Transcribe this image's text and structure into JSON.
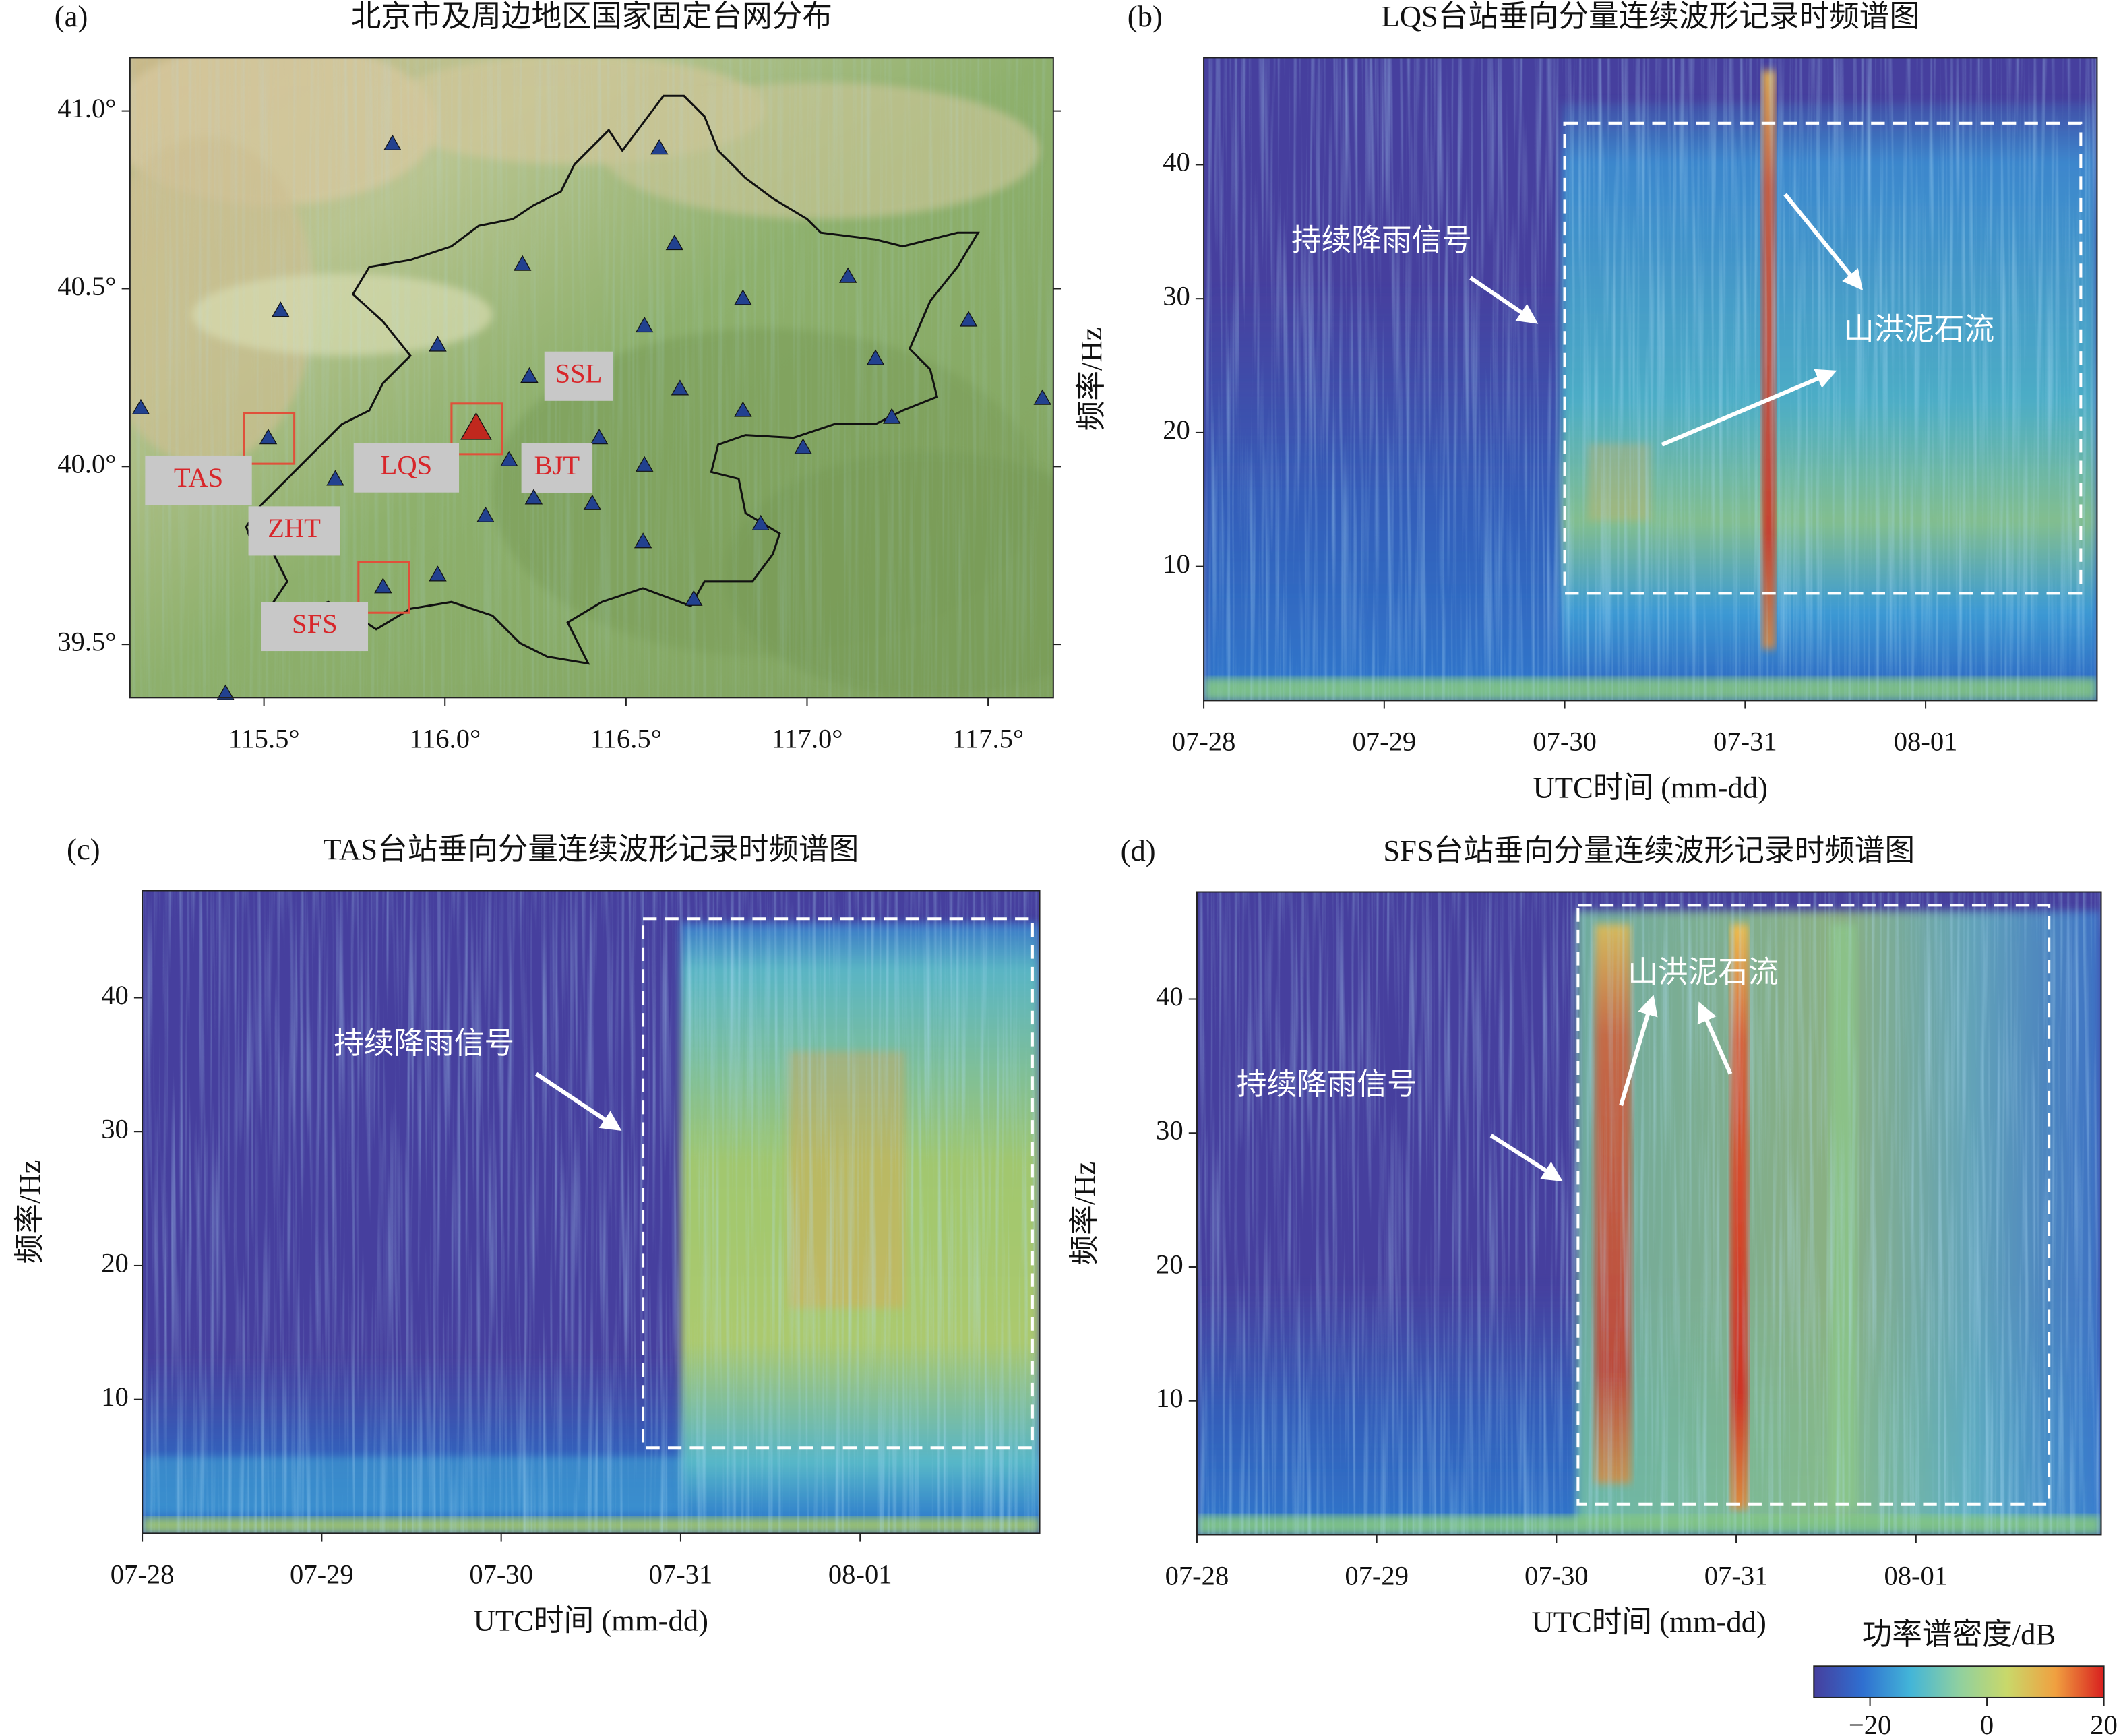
{
  "chart_data": [
    {
      "type": "map",
      "panel_label": "(a)",
      "title": "北京市及周边地区国家固定台网分布",
      "xlim": [
        115.13,
        117.68
      ],
      "ylim": [
        39.35,
        41.15
      ],
      "xticks": [
        {
          "value": 115.5,
          "label": "115.5°"
        },
        {
          "value": 116.0,
          "label": "116.0°"
        },
        {
          "value": 116.5,
          "label": "116.5°"
        },
        {
          "value": 117.0,
          "label": "117.0°"
        },
        {
          "value": 117.5,
          "label": "117.5°"
        }
      ],
      "yticks": [
        {
          "value": 39.5,
          "label": "39.5°"
        },
        {
          "value": 40.0,
          "label": "40.0°"
        },
        {
          "value": 40.5,
          "label": "40.5°"
        },
        {
          "value": 41.0,
          "label": "41.0°"
        }
      ],
      "station_color": "#22418f",
      "stations": [
        {
          "lon": 115.855,
          "lat": 40.908
        },
        {
          "lon": 116.592,
          "lat": 40.896
        },
        {
          "lon": 116.634,
          "lat": 40.627
        },
        {
          "lon": 116.214,
          "lat": 40.569
        },
        {
          "lon": 115.546,
          "lat": 40.439
        },
        {
          "lon": 116.823,
          "lat": 40.473
        },
        {
          "lon": 117.113,
          "lat": 40.535
        },
        {
          "lon": 115.98,
          "lat": 40.342
        },
        {
          "lon": 116.551,
          "lat": 40.396
        },
        {
          "lon": 117.446,
          "lat": 40.412
        },
        {
          "lon": 117.189,
          "lat": 40.304
        },
        {
          "lon": 116.233,
          "lat": 40.254,
          "name": "SSL"
        },
        {
          "lon": 116.649,
          "lat": 40.219
        },
        {
          "lon": 115.16,
          "lat": 40.165
        },
        {
          "lon": 116.823,
          "lat": 40.158
        },
        {
          "lon": 117.234,
          "lat": 40.139
        },
        {
          "lon": 117.65,
          "lat": 40.192
        },
        {
          "lon": 115.512,
          "lat": 40.081,
          "name": "TAS",
          "highlight": true
        },
        {
          "lon": 116.426,
          "lat": 40.081
        },
        {
          "lon": 116.177,
          "lat": 40.019,
          "name": "BJT"
        },
        {
          "lon": 116.989,
          "lat": 40.054
        },
        {
          "lon": 115.697,
          "lat": 39.965,
          "name": "ZHT"
        },
        {
          "lon": 116.551,
          "lat": 40.004
        },
        {
          "lon": 116.245,
          "lat": 39.912
        },
        {
          "lon": 116.407,
          "lat": 39.896
        },
        {
          "lon": 116.112,
          "lat": 39.862
        },
        {
          "lon": 116.872,
          "lat": 39.839
        },
        {
          "lon": 116.547,
          "lat": 39.789
        },
        {
          "lon": 115.829,
          "lat": 39.662,
          "name": "SFS",
          "highlight": true
        },
        {
          "lon": 115.98,
          "lat": 39.696
        },
        {
          "lon": 116.687,
          "lat": 39.627
        },
        {
          "lon": 115.394,
          "lat": 39.362
        },
        {
          "lon": 116.086,
          "lat": 40.108,
          "name": "LQS",
          "highlight": true,
          "color": "#c0281e"
        }
      ]
    },
    {
      "type": "spectrogram",
      "panel_label": "(b)",
      "title": "LQS台站垂向分量连续波形记录时频谱图",
      "xlabel": "UTC时间 (mm-dd)",
      "ylabel": "频率/Hz",
      "xlim": [
        0,
        4.95
      ],
      "ylim": [
        0,
        48
      ],
      "xticks": [
        {
          "value": 0,
          "label": "07-28"
        },
        {
          "value": 1,
          "label": "07-29"
        },
        {
          "value": 2,
          "label": "07-30"
        },
        {
          "value": 3,
          "label": "07-31"
        },
        {
          "value": 4,
          "label": "08-01"
        }
      ],
      "yticks": [
        10,
        20,
        30,
        40
      ],
      "highlight_box": {
        "x": [
          2.0,
          4.86
        ],
        "y": [
          8,
          43.1
        ]
      },
      "annotations": [
        "持续降雨信号",
        "山洪泥石流"
      ]
    },
    {
      "type": "spectrogram",
      "panel_label": "(c)",
      "title": "TAS台站垂向分量连续波形记录时频谱图",
      "xlabel": "UTC时间 (mm-dd)",
      "ylabel": "频率/Hz",
      "xlim": [
        0,
        5.0
      ],
      "ylim": [
        0,
        48
      ],
      "xticks": [
        {
          "value": 0,
          "label": "07-28"
        },
        {
          "value": 1,
          "label": "07-29"
        },
        {
          "value": 2,
          "label": "07-30"
        },
        {
          "value": 3,
          "label": "07-31"
        },
        {
          "value": 4,
          "label": "08-01"
        }
      ],
      "yticks": [
        10,
        20,
        30,
        40
      ],
      "highlight_box": {
        "x": [
          2.79,
          4.96
        ],
        "y": [
          6.4,
          45.9
        ]
      },
      "annotations": [
        "持续降雨信号"
      ]
    },
    {
      "type": "spectrogram",
      "panel_label": "(d)",
      "title": "SFS台站垂向分量连续波形记录时频谱图",
      "xlabel": "UTC时间 (mm-dd)",
      "ylabel": "频率/Hz",
      "xlim": [
        0,
        5.03
      ],
      "ylim": [
        0,
        48
      ],
      "xticks": [
        {
          "value": 0,
          "label": "07-28"
        },
        {
          "value": 1,
          "label": "07-29"
        },
        {
          "value": 2,
          "label": "07-30"
        },
        {
          "value": 3,
          "label": "07-31"
        },
        {
          "value": 4,
          "label": "08-01"
        }
      ],
      "yticks": [
        10,
        20,
        30,
        40
      ],
      "highlight_box": {
        "x": [
          2.12,
          4.74
        ],
        "y": [
          2.3,
          47.0
        ]
      },
      "annotations": [
        "持续降雨信号",
        "山洪泥石流"
      ]
    },
    {
      "type": "colorbar",
      "label": "功率谱密度/dB",
      "clim": [
        -29.6,
        20
      ],
      "ticks": [
        {
          "value": -20,
          "label": "−20"
        },
        0,
        20
      ],
      "colors": [
        "#463f9e",
        "#2f6fd0",
        "#43b5d8",
        "#8fd0a0",
        "#c9d86a",
        "#f0a040",
        "#d81f1f"
      ]
    }
  ]
}
